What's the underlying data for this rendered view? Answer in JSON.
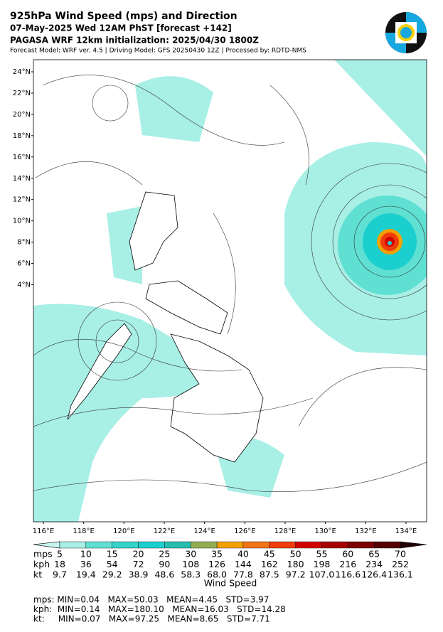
{
  "header": {
    "title": "925hPa Wind Speed (mps) and Direction",
    "line2": "07-May-2025 Wed 12AM PhST [forecast +142]",
    "line3": "PAGASA WRF 12km initialization: 2025/04/30 1800Z",
    "line4": "Forecast Model: WRF ver. 4.5 | Driving Model: GFS 20250430 12Z | Processed by: RDTD-NMS"
  },
  "map": {
    "lat_labels": [
      "24°N",
      "22°N",
      "20°N",
      "18°N",
      "16°N",
      "14°N",
      "12°N",
      "10°N",
      "8°N",
      "6°N",
      "4°N"
    ],
    "lon_labels": [
      "116°E",
      "118°E",
      "120°E",
      "122°E",
      "124°E",
      "126°E",
      "128°E",
      "130°E",
      "132°E",
      "134°E"
    ]
  },
  "colorbar": {
    "label": "Wind Speed",
    "colors": [
      "#c8f5f0",
      "#a8efe6",
      "#5fe0d2",
      "#35d3c9",
      "#1ccfcf",
      "#24bfae",
      "#93ae52",
      "#f2a100",
      "#f27314",
      "#f03c0c",
      "#d40000",
      "#a50000",
      "#7d0000",
      "#560000",
      "#200000"
    ],
    "rows": [
      {
        "unit": "mps",
        "values": [
          "5",
          "10",
          "15",
          "20",
          "25",
          "30",
          "35",
          "40",
          "45",
          "50",
          "55",
          "60",
          "65",
          "70"
        ]
      },
      {
        "unit": "kph",
        "values": [
          "18",
          "36",
          "54",
          "72",
          "90",
          "108",
          "126",
          "144",
          "162",
          "180",
          "198",
          "216",
          "234",
          "252"
        ]
      },
      {
        "unit": "kt",
        "values": [
          "9.7",
          "19.4",
          "29.2",
          "38.9",
          "48.6",
          "58.3",
          "68.0",
          "77.8",
          "87.5",
          "97.2",
          "107.0",
          "116.6",
          "126.4",
          "136.1"
        ]
      }
    ]
  },
  "stats": [
    "mps: MIN=0.04   MAX=50.03   MEAN=4.45   STD=3.97",
    "kph:  MIN=0.14   MAX=180.10   MEAN=16.03   STD=14.28",
    "kt:     MIN=0.07   MAX=97.25   MEAN=8.65   STD=7.71"
  ]
}
